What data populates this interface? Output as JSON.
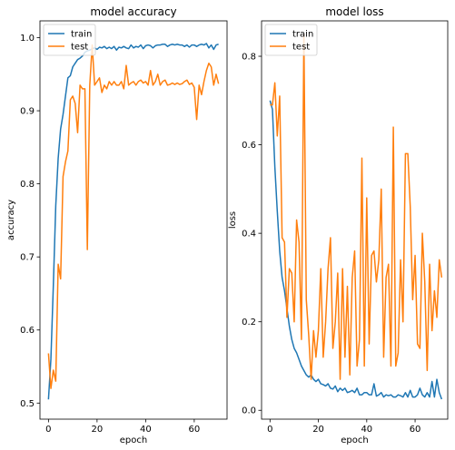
{
  "chart_data": [
    {
      "type": "line",
      "title": "model accuracy",
      "xlabel": "epoch",
      "ylabel": "accuracy",
      "xlim": [
        -3.5,
        73.5
      ],
      "ylim": [
        0.478,
        1.023
      ],
      "xticks": [
        0,
        20,
        40,
        60
      ],
      "yticks": [
        0.5,
        0.6,
        0.7,
        0.8,
        0.9,
        1.0
      ],
      "ytick_labels": [
        "0.5",
        "0.6",
        "0.7",
        "0.8",
        "0.9",
        "1.0"
      ],
      "legend_position": "upper-left",
      "grid": false,
      "series": [
        {
          "name": "train",
          "color": "#1f77b4",
          "values": [
            0.505,
            0.56,
            0.66,
            0.77,
            0.835,
            0.875,
            0.895,
            0.92,
            0.945,
            0.948,
            0.96,
            0.965,
            0.97,
            0.972,
            0.975,
            0.98,
            0.982,
            0.983,
            0.985,
            0.986,
            0.984,
            0.987,
            0.986,
            0.988,
            0.985,
            0.987,
            0.985,
            0.988,
            0.983,
            0.987,
            0.986,
            0.988,
            0.986,
            0.985,
            0.99,
            0.986,
            0.988,
            0.987,
            0.99,
            0.985,
            0.989,
            0.99,
            0.989,
            0.986,
            0.989,
            0.99,
            0.99,
            0.991,
            0.991,
            0.988,
            0.99,
            0.991,
            0.99,
            0.991,
            0.99,
            0.99,
            0.988,
            0.99,
            0.987,
            0.99,
            0.99,
            0.988,
            0.99,
            0.991,
            0.99,
            0.992,
            0.986,
            0.99,
            0.984,
            0.99,
            0.991
          ]
        },
        {
          "name": "test",
          "color": "#ff7f0e",
          "values": [
            0.568,
            0.52,
            0.545,
            0.53,
            0.69,
            0.67,
            0.81,
            0.83,
            0.845,
            0.915,
            0.92,
            0.91,
            0.87,
            0.935,
            0.93,
            0.93,
            0.71,
            0.935,
            0.99,
            0.935,
            0.94,
            0.945,
            0.925,
            0.935,
            0.93,
            0.94,
            0.935,
            0.94,
            0.935,
            0.935,
            0.94,
            0.93,
            0.962,
            0.935,
            0.938,
            0.94,
            0.935,
            0.94,
            0.942,
            0.938,
            0.94,
            0.935,
            0.955,
            0.935,
            0.94,
            0.95,
            0.935,
            0.94,
            0.942,
            0.935,
            0.936,
            0.938,
            0.936,
            0.938,
            0.936,
            0.937,
            0.94,
            0.942,
            0.936,
            0.938,
            0.932,
            0.888,
            0.935,
            0.922,
            0.94,
            0.955,
            0.965,
            0.96,
            0.935,
            0.95,
            0.937
          ]
        }
      ]
    },
    {
      "type": "line",
      "title": "model loss",
      "xlabel": "epoch",
      "ylabel": "loss",
      "xlim": [
        -3.5,
        73.5
      ],
      "ylim": [
        -0.02,
        0.88
      ],
      "xticks": [
        0,
        20,
        40,
        60
      ],
      "yticks": [
        0.0,
        0.2,
        0.4,
        0.6,
        0.8
      ],
      "ytick_labels": [
        "0.0",
        "0.2",
        "0.4",
        "0.6",
        "0.8"
      ],
      "legend_position": "upper-left",
      "grid": false,
      "series": [
        {
          "name": "train",
          "color": "#1f77b4",
          "values": [
            0.7,
            0.68,
            0.55,
            0.45,
            0.36,
            0.3,
            0.27,
            0.23,
            0.19,
            0.16,
            0.14,
            0.13,
            0.115,
            0.1,
            0.09,
            0.08,
            0.075,
            0.08,
            0.07,
            0.065,
            0.07,
            0.06,
            0.058,
            0.055,
            0.06,
            0.05,
            0.048,
            0.055,
            0.042,
            0.05,
            0.045,
            0.05,
            0.04,
            0.042,
            0.045,
            0.04,
            0.05,
            0.035,
            0.035,
            0.04,
            0.04,
            0.035,
            0.035,
            0.06,
            0.032,
            0.035,
            0.04,
            0.03,
            0.035,
            0.033,
            0.035,
            0.03,
            0.03,
            0.035,
            0.033,
            0.03,
            0.04,
            0.03,
            0.045,
            0.03,
            0.03,
            0.035,
            0.05,
            0.035,
            0.03,
            0.04,
            0.03,
            0.065,
            0.03,
            0.07,
            0.04,
            0.025
          ]
        },
        {
          "name": "test",
          "color": "#ff7f0e",
          "values": [
            0.69,
            0.69,
            0.74,
            0.62,
            0.71,
            0.39,
            0.38,
            0.21,
            0.32,
            0.31,
            0.2,
            0.43,
            0.38,
            0.16,
            0.85,
            0.25,
            0.17,
            0.07,
            0.18,
            0.12,
            0.18,
            0.32,
            0.12,
            0.2,
            0.32,
            0.39,
            0.14,
            0.2,
            0.31,
            0.07,
            0.32,
            0.12,
            0.28,
            0.08,
            0.3,
            0.36,
            0.1,
            0.16,
            0.57,
            0.1,
            0.48,
            0.15,
            0.35,
            0.36,
            0.29,
            0.34,
            0.5,
            0.12,
            0.3,
            0.33,
            0.1,
            0.64,
            0.1,
            0.13,
            0.34,
            0.2,
            0.58,
            0.58,
            0.46,
            0.25,
            0.35,
            0.15,
            0.14,
            0.4,
            0.29,
            0.09,
            0.33,
            0.18,
            0.27,
            0.21,
            0.34,
            0.3
          ]
        }
      ]
    }
  ]
}
